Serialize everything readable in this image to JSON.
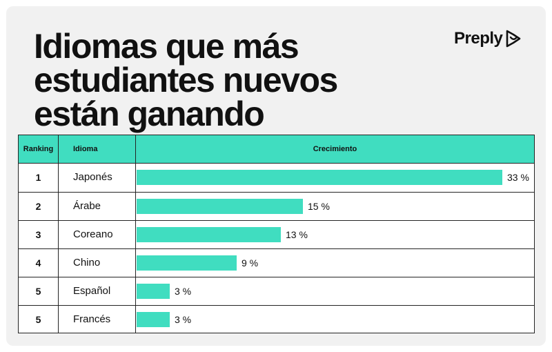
{
  "title_lines": [
    "Idiomas que más",
    "estudiantes nuevos",
    "están ganando"
  ],
  "brand": {
    "name": "Preply",
    "icon": "preply-logo-icon"
  },
  "colors": {
    "accent": "#40ddc0",
    "text": "#111111",
    "card": "#f1f1f1"
  },
  "chart_data": {
    "type": "bar",
    "orientation": "horizontal",
    "title": "Idiomas que más estudiantes nuevos están ganando",
    "columns": [
      "Ranking",
      "Idioma",
      "Crecimiento"
    ],
    "unit": "%",
    "xlim": [
      0,
      33
    ],
    "rows": [
      {
        "rank": "1",
        "language": "Japonés",
        "value": 33,
        "label": "33 %"
      },
      {
        "rank": "2",
        "language": "Árabe",
        "value": 15,
        "label": "15 %"
      },
      {
        "rank": "3",
        "language": "Coreano",
        "value": 13,
        "label": "13 %"
      },
      {
        "rank": "4",
        "language": "Chino",
        "value": 9,
        "label": "9 %"
      },
      {
        "rank": "5",
        "language": "Español",
        "value": 3,
        "label": "3 %"
      },
      {
        "rank": "5",
        "language": "Francés",
        "value": 3,
        "label": "3 %"
      }
    ]
  }
}
